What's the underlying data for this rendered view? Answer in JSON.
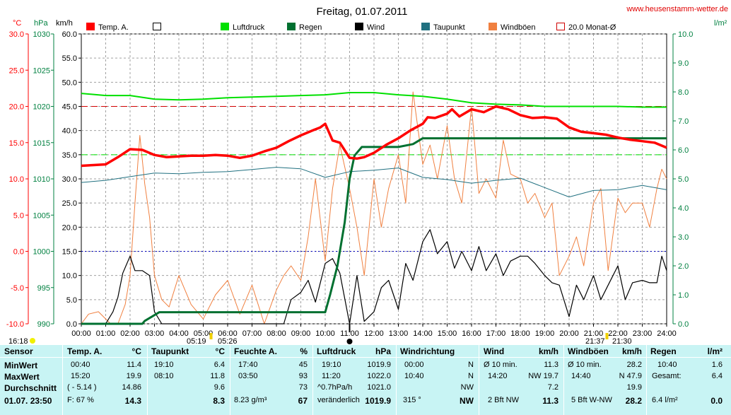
{
  "header": {
    "title": "Freitag, 01.07.2011",
    "website": "www.heusenstamm-wetter.de",
    "units": {
      "temp": "°C",
      "pressure": "hPa",
      "wind": "km/h",
      "rain": "l/m²"
    }
  },
  "colors": {
    "temp": "#ff0000",
    "pressure": "#00e000",
    "rain": "#007030",
    "wind": "#000000",
    "dewpoint": "#207080",
    "gust": "#f08040",
    "month_avg": "#d00000",
    "zero_line": "#0000c0",
    "temp_axis": "#ff0000",
    "rain_axis": "#008040",
    "table_bg": "#c8f4f4"
  },
  "chart_data": {
    "type": "line",
    "title": "Freitag, 01.07.2011",
    "x_ticks": [
      "00:00",
      "01:00",
      "02:00",
      "03:00",
      "04:00",
      "05:00",
      "06:00",
      "07:00",
      "08:00",
      "09:00",
      "10:00",
      "11:00",
      "12:00",
      "13:00",
      "14:00",
      "15:00",
      "16:00",
      "17:00",
      "18:00",
      "19:00",
      "20:00",
      "21:00",
      "22:00",
      "23:00",
      "24:00"
    ],
    "sun_labels": {
      "sunrise_a": "05:19",
      "sunrise_b": "05:26",
      "sunset_a": "21:37",
      "sunset_b": "21:30"
    },
    "axes": {
      "temp": {
        "min": -10,
        "max": 30,
        "ticks": [
          "30.0",
          "25.0",
          "20.0",
          "15.0",
          "10.0",
          "5.0",
          "0.0",
          "-5.0",
          "-10.0"
        ]
      },
      "pressure": {
        "min": 990,
        "max": 1030,
        "ticks": [
          "1030",
          "1025",
          "1020",
          "1015",
          "1010",
          "1005",
          "1000",
          "995",
          "990"
        ]
      },
      "wind": {
        "min": 0,
        "max": 60,
        "ticks": [
          "60.0",
          "55.0",
          "50.0",
          "45.0",
          "40.0",
          "35.0",
          "30.0",
          "25.0",
          "20.0",
          "15.0",
          "10.0",
          "5.0",
          "0.0"
        ]
      },
      "rain": {
        "min": 0,
        "max": 10,
        "ticks": [
          "10.0",
          "9.0",
          "8.0",
          "7.0",
          "6.0",
          "5.0",
          "4.0",
          "3.0",
          "2.0",
          "1.0",
          "0.0"
        ]
      }
    },
    "legend": [
      {
        "key": "temp",
        "label": "Temp. A."
      },
      {
        "key": "empty",
        "label": ""
      },
      {
        "key": "pressure",
        "label": "Luftdruck"
      },
      {
        "key": "rain",
        "label": "Regen"
      },
      {
        "key": "wind",
        "label": "Wind"
      },
      {
        "key": "dewpoint",
        "label": "Taupunkt"
      },
      {
        "key": "gust",
        "label": "Windböen"
      },
      {
        "key": "month_avg",
        "label": "20.0 Monat-Ø"
      }
    ],
    "ref_lines": {
      "month_avg_temp": 20.0,
      "dashed_green_wind": 35.0,
      "zero_temp": 0.0
    },
    "series": {
      "temp": {
        "x": [
          0,
          0.5,
          1,
          1.5,
          2,
          2.5,
          3,
          3.5,
          4,
          4.5,
          5,
          5.5,
          6,
          6.5,
          7,
          7.5,
          8,
          8.5,
          9,
          9.5,
          9.8,
          10,
          10.3,
          10.6,
          11,
          11.3,
          11.6,
          12,
          12.5,
          13,
          13.5,
          14,
          14.2,
          14.5,
          15,
          15.2,
          15.5,
          16,
          16.5,
          17,
          17.5,
          18,
          18.5,
          19,
          19.5,
          20,
          20.5,
          21,
          21.5,
          22,
          22.5,
          23,
          23.5,
          24
        ],
        "y": [
          11.8,
          11.9,
          12.0,
          13.0,
          14.1,
          14.0,
          13.3,
          13.0,
          13.1,
          13.2,
          13.2,
          13.3,
          13.2,
          12.9,
          13.2,
          13.8,
          14.3,
          15.2,
          16.0,
          16.7,
          17.1,
          17.6,
          15.3,
          15.0,
          12.9,
          12.8,
          13.0,
          13.6,
          14.7,
          15.6,
          16.7,
          17.6,
          18.5,
          18.4,
          19.0,
          19.6,
          18.6,
          19.6,
          19.2,
          20.0,
          19.6,
          18.8,
          18.4,
          18.5,
          18.3,
          17.1,
          16.5,
          16.3,
          16.1,
          15.7,
          15.4,
          15.2,
          15.0,
          14.3
        ]
      },
      "pressure": {
        "x": [
          0,
          1,
          2,
          3,
          4,
          5,
          6,
          7,
          8,
          9,
          10,
          11,
          12,
          13,
          14,
          15,
          16,
          17,
          18,
          19,
          20,
          21,
          22,
          23,
          24
        ],
        "y": [
          1021.8,
          1021.5,
          1021.5,
          1021.0,
          1020.9,
          1021.0,
          1021.2,
          1021.3,
          1021.4,
          1021.5,
          1021.6,
          1021.9,
          1021.9,
          1021.6,
          1021.4,
          1021.0,
          1020.5,
          1020.3,
          1020.2,
          1020.0,
          1020.0,
          1020.0,
          1020.0,
          1019.9,
          1019.9
        ]
      },
      "rain": {
        "x": [
          0,
          2.5,
          2.6,
          3.0,
          3.2,
          10.0,
          10.2,
          10.5,
          10.8,
          11.0,
          11.2,
          11.5,
          12.0,
          13.0,
          13.6,
          14.0,
          15.0,
          16.0,
          17.0,
          18.0,
          19.0,
          20.0,
          21.0,
          22.0,
          23.0,
          24.0
        ],
        "y": [
          0,
          0,
          0.1,
          0.3,
          0.4,
          0.4,
          1.0,
          2.0,
          3.5,
          5.0,
          5.8,
          6.1,
          6.1,
          6.1,
          6.2,
          6.4,
          6.4,
          6.4,
          6.4,
          6.4,
          6.4,
          6.4,
          6.4,
          6.4,
          6.4,
          6.4
        ]
      },
      "dewpoint": {
        "x": [
          0,
          1,
          2,
          3,
          4,
          5,
          6,
          7,
          8,
          9,
          10,
          11,
          12,
          13,
          14,
          15,
          16,
          17,
          18,
          19,
          20,
          21,
          22,
          23,
          24
        ],
        "y": [
          9.5,
          9.8,
          10.3,
          10.8,
          10.7,
          10.9,
          11.0,
          11.3,
          11.6,
          11.4,
          10.2,
          11.0,
          11.2,
          11.5,
          10.2,
          9.9,
          9.4,
          9.8,
          10.1,
          8.8,
          7.5,
          8.4,
          8.5,
          9.1,
          8.5
        ]
      },
      "wind": {
        "x": [
          0,
          0.7,
          1,
          1.3,
          1.5,
          1.7,
          2,
          2.2,
          2.5,
          2.8,
          3,
          3.3,
          3.6,
          4,
          4.5,
          5,
          5.5,
          6,
          6.5,
          7,
          7.5,
          8,
          8.3,
          8.6,
          9,
          9.3,
          9.6,
          10,
          10.3,
          10.6,
          11,
          11.3,
          11.6,
          12,
          12.3,
          12.6,
          13,
          13.3,
          13.6,
          14,
          14.3,
          14.6,
          15,
          15.3,
          15.6,
          16,
          16.3,
          16.6,
          17,
          17.3,
          17.6,
          18,
          18.3,
          18.6,
          19,
          19.3,
          19.6,
          20,
          20.3,
          20.6,
          21,
          21.3,
          21.6,
          22,
          22.3,
          22.6,
          23,
          23.3,
          23.6,
          23.8,
          24
        ],
        "y": [
          0,
          0,
          0,
          2.5,
          5.5,
          10.5,
          14.0,
          11.0,
          11.0,
          10.0,
          2.5,
          0,
          0,
          0,
          0,
          0,
          0,
          0,
          0,
          0,
          0,
          0,
          0,
          5.0,
          6.5,
          9.0,
          4.5,
          12.5,
          13.5,
          10.5,
          0,
          10.0,
          0.5,
          2.5,
          7.5,
          9.0,
          3.0,
          12.5,
          9.0,
          17.0,
          19.5,
          14.5,
          17.0,
          11.5,
          15.0,
          11.0,
          16.0,
          11.0,
          14.5,
          10.0,
          13.0,
          14.0,
          14.0,
          12.5,
          10.0,
          8.5,
          8.0,
          1.5,
          8.0,
          5.0,
          10.0,
          5.0,
          8.0,
          12.0,
          5.0,
          8.5,
          9.0,
          8.5,
          8.5,
          14.0,
          11.0
        ]
      },
      "gust": {
        "x": [
          0,
          0.3,
          0.7,
          1.2,
          1.5,
          1.8,
          2.0,
          2.2,
          2.4,
          2.6,
          2.8,
          3.0,
          3.3,
          3.6,
          4.0,
          4.5,
          5.0,
          5.5,
          6.0,
          6.5,
          7.0,
          7.5,
          8.0,
          8.3,
          8.6,
          9.0,
          9.3,
          9.6,
          10.0,
          10.3,
          10.6,
          11.0,
          11.3,
          11.6,
          12.0,
          12.3,
          12.6,
          13.0,
          13.3,
          13.6,
          14.0,
          14.3,
          14.6,
          15.0,
          15.3,
          15.6,
          16.0,
          16.3,
          16.6,
          17.0,
          17.3,
          17.6,
          18.0,
          18.3,
          18.6,
          19.0,
          19.3,
          19.6,
          20.0,
          20.3,
          20.6,
          21.0,
          21.3,
          21.6,
          22.0,
          22.3,
          22.6,
          23.0,
          23.3,
          23.6,
          23.8,
          24.0
        ],
        "y": [
          0,
          2.0,
          2.5,
          0,
          0,
          4.0,
          10.0,
          25.0,
          39.0,
          29.0,
          22.0,
          10.0,
          5.0,
          3.5,
          10.0,
          4.0,
          1.0,
          6.0,
          9.0,
          2.0,
          8.0,
          0,
          7.0,
          10.0,
          12.0,
          9.0,
          18.0,
          30.0,
          13.0,
          28.0,
          37.0,
          28.0,
          20.0,
          10.0,
          30.0,
          20.0,
          28.0,
          35.0,
          25.0,
          48.0,
          33.0,
          37.0,
          30.0,
          41.0,
          30.0,
          25.0,
          45.0,
          27.0,
          30.0,
          26.0,
          38.0,
          31.0,
          30.0,
          25.0,
          27.0,
          22.0,
          25.0,
          10.0,
          14.0,
          18.0,
          12.0,
          25.0,
          28.0,
          11.0,
          26.0,
          23.0,
          25.0,
          25.0,
          20.0,
          28.0,
          32.0,
          30.0
        ]
      }
    }
  },
  "table": {
    "headers": {
      "sensor": "Sensor",
      "temp": "Temp. A.",
      "temp_unit": "°C",
      "dew": "Taupunkt",
      "dew_unit": "°C",
      "hum": "Feuchte A.",
      "hum_unit": "%",
      "pres": "Luftdruck",
      "pres_unit": "hPa",
      "dir": "Windrichtung",
      "wind": "Wind",
      "wind_unit": "km/h",
      "gust": "Windböen",
      "gust_unit": "km/h",
      "rain": "Regen",
      "rain_unit": "l/m²"
    },
    "row_labels": [
      "MinWert",
      "MaxWert",
      "Durchschnitt",
      "01.07. 23:50"
    ],
    "min": {
      "temp_t": "00:40",
      "temp_v": "11.4",
      "dew_t": "19:10",
      "dew_v": "6.4",
      "hum_t": "17:40",
      "hum_v": "45",
      "pres_t": "19:10",
      "pres_v": "1019.9",
      "dir_t": "00:00",
      "dir_v": "N",
      "wind_t": "Ø 10 min.",
      "wind_v": "11.3",
      "gust_t": "Ø 10 min.",
      "gust_v": "28.2",
      "rain_t": "10:40",
      "rain_v": "1.6"
    },
    "max": {
      "temp_t": "15:20",
      "temp_v": "19.9",
      "dew_t": "08:10",
      "dew_v": "11.8",
      "hum_t": "03:50",
      "hum_v": "93",
      "pres_t": "11:20",
      "pres_v": "1022.0",
      "dir_t": "10:40",
      "dir_v": "N",
      "wind_t": "14:20",
      "wind_v": "NW 19.7",
      "gust_t": "14:40",
      "gust_v": "N 47.9",
      "rain_t": "Gesamt:",
      "rain_v": "6.4"
    },
    "avg": {
      "temp_t": "( - 5.14 )",
      "temp_v": "14.86",
      "dew_v": "9.6",
      "hum_v": "73",
      "pres_t": "^0.7hPa/h",
      "pres_v": "1021.0",
      "dir_v": "NW",
      "wind_v": "7.2",
      "gust_v": "19.9"
    },
    "cur": {
      "temp_t": "F: 67 %",
      "temp_v": "14.3",
      "dew_v": "8.3",
      "hum_t": "8.23 g/m³",
      "hum_v": "67",
      "pres_t": "veränderlich",
      "pres_v": "1019.9",
      "dir_t": "315 °",
      "dir_v": "NW",
      "wind_t": "2 Bft NW",
      "wind_v": "11.3",
      "gust_t": "5 Bft W-NW",
      "gust_v": "28.2",
      "rain_t": "6.4 l/m²",
      "rain_v": "0.0"
    }
  },
  "time_now": "16:18"
}
